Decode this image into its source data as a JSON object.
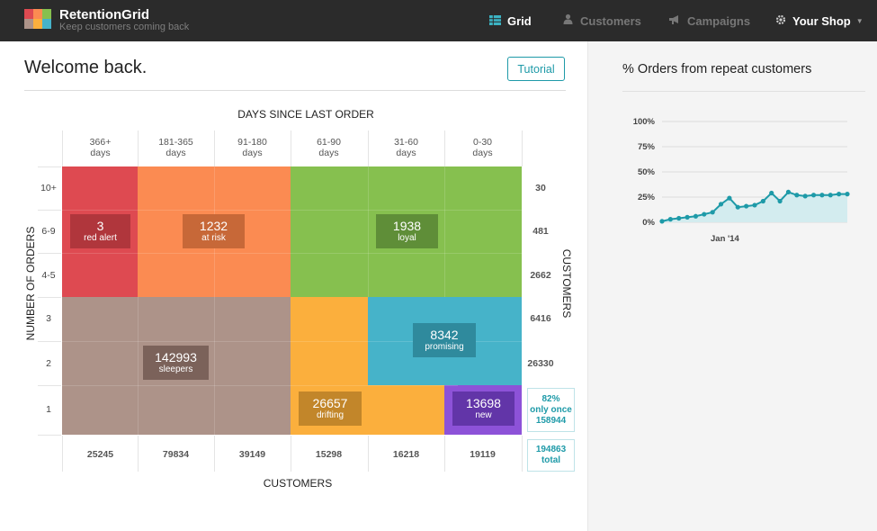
{
  "app": {
    "name": "RetentionGrid",
    "tagline": "Keep customers coming back"
  },
  "nav": {
    "grid": "Grid",
    "customers": "Customers",
    "campaigns": "Campaigns",
    "shop": "Your Shop"
  },
  "main": {
    "welcome": "Welcome back.",
    "tutorial": "Tutorial"
  },
  "grid": {
    "top_axis": "DAYS SINCE LAST ORDER",
    "bottom_axis": "CUSTOMERS",
    "left_axis": "NUMBER OF ORDERS",
    "right_axis": "CUSTOMERS",
    "columns": [
      {
        "range": "366+",
        "unit": "days"
      },
      {
        "range": "181-365",
        "unit": "days"
      },
      {
        "range": "91-180",
        "unit": "days"
      },
      {
        "range": "61-90",
        "unit": "days"
      },
      {
        "range": "31-60",
        "unit": "days"
      },
      {
        "range": "0-30",
        "unit": "days"
      }
    ],
    "rows": [
      "10+",
      "6-9",
      "4-5",
      "3",
      "2",
      "1"
    ],
    "row_customers": [
      "30",
      "481",
      "2662",
      "6416",
      "26330"
    ],
    "col_customers": [
      "25245",
      "79834",
      "39149",
      "15298",
      "16218",
      "19119"
    ],
    "only_once": {
      "pct": "82%",
      "label": "only once",
      "count": "158944"
    },
    "total": {
      "count": "194863",
      "label": "total"
    },
    "segments": {
      "red_alert": {
        "count": "3",
        "label": "red alert",
        "color": "#de4a51"
      },
      "at_risk": {
        "count": "1232",
        "label": "at risk",
        "color": "#fb8b52"
      },
      "loyal": {
        "count": "1938",
        "label": "loyal",
        "color": "#86c04f"
      },
      "sleepers": {
        "count": "142993",
        "label": "sleepers",
        "color": "#ad9389"
      },
      "promising": {
        "count": "8342",
        "label": "promising",
        "color": "#46b3c9"
      },
      "drifting": {
        "count": "26657",
        "label": "drifting",
        "color": "#fbaf3d"
      },
      "new": {
        "count": "13698",
        "label": "new",
        "color": "#8d52d8"
      }
    }
  },
  "side": {
    "title": "% Orders from repeat customers",
    "y_ticks": [
      "100%",
      "75%",
      "50%",
      "25%",
      "0%"
    ],
    "x_label": "Jan '14"
  },
  "chart_data": {
    "type": "area",
    "title": "% Orders from repeat customers",
    "ylim": [
      0,
      100
    ],
    "y_ticks": [
      "100%",
      "75%",
      "50%",
      "25%",
      "0%"
    ],
    "x_tick_labels": [
      "Jan '14"
    ],
    "values": [
      1,
      3,
      4,
      5,
      6,
      8,
      10,
      18,
      24,
      15,
      16,
      17,
      21,
      29,
      21,
      30,
      27,
      26,
      27,
      27,
      27,
      28,
      28
    ],
    "grid": true,
    "color": "#1e9aa8"
  }
}
